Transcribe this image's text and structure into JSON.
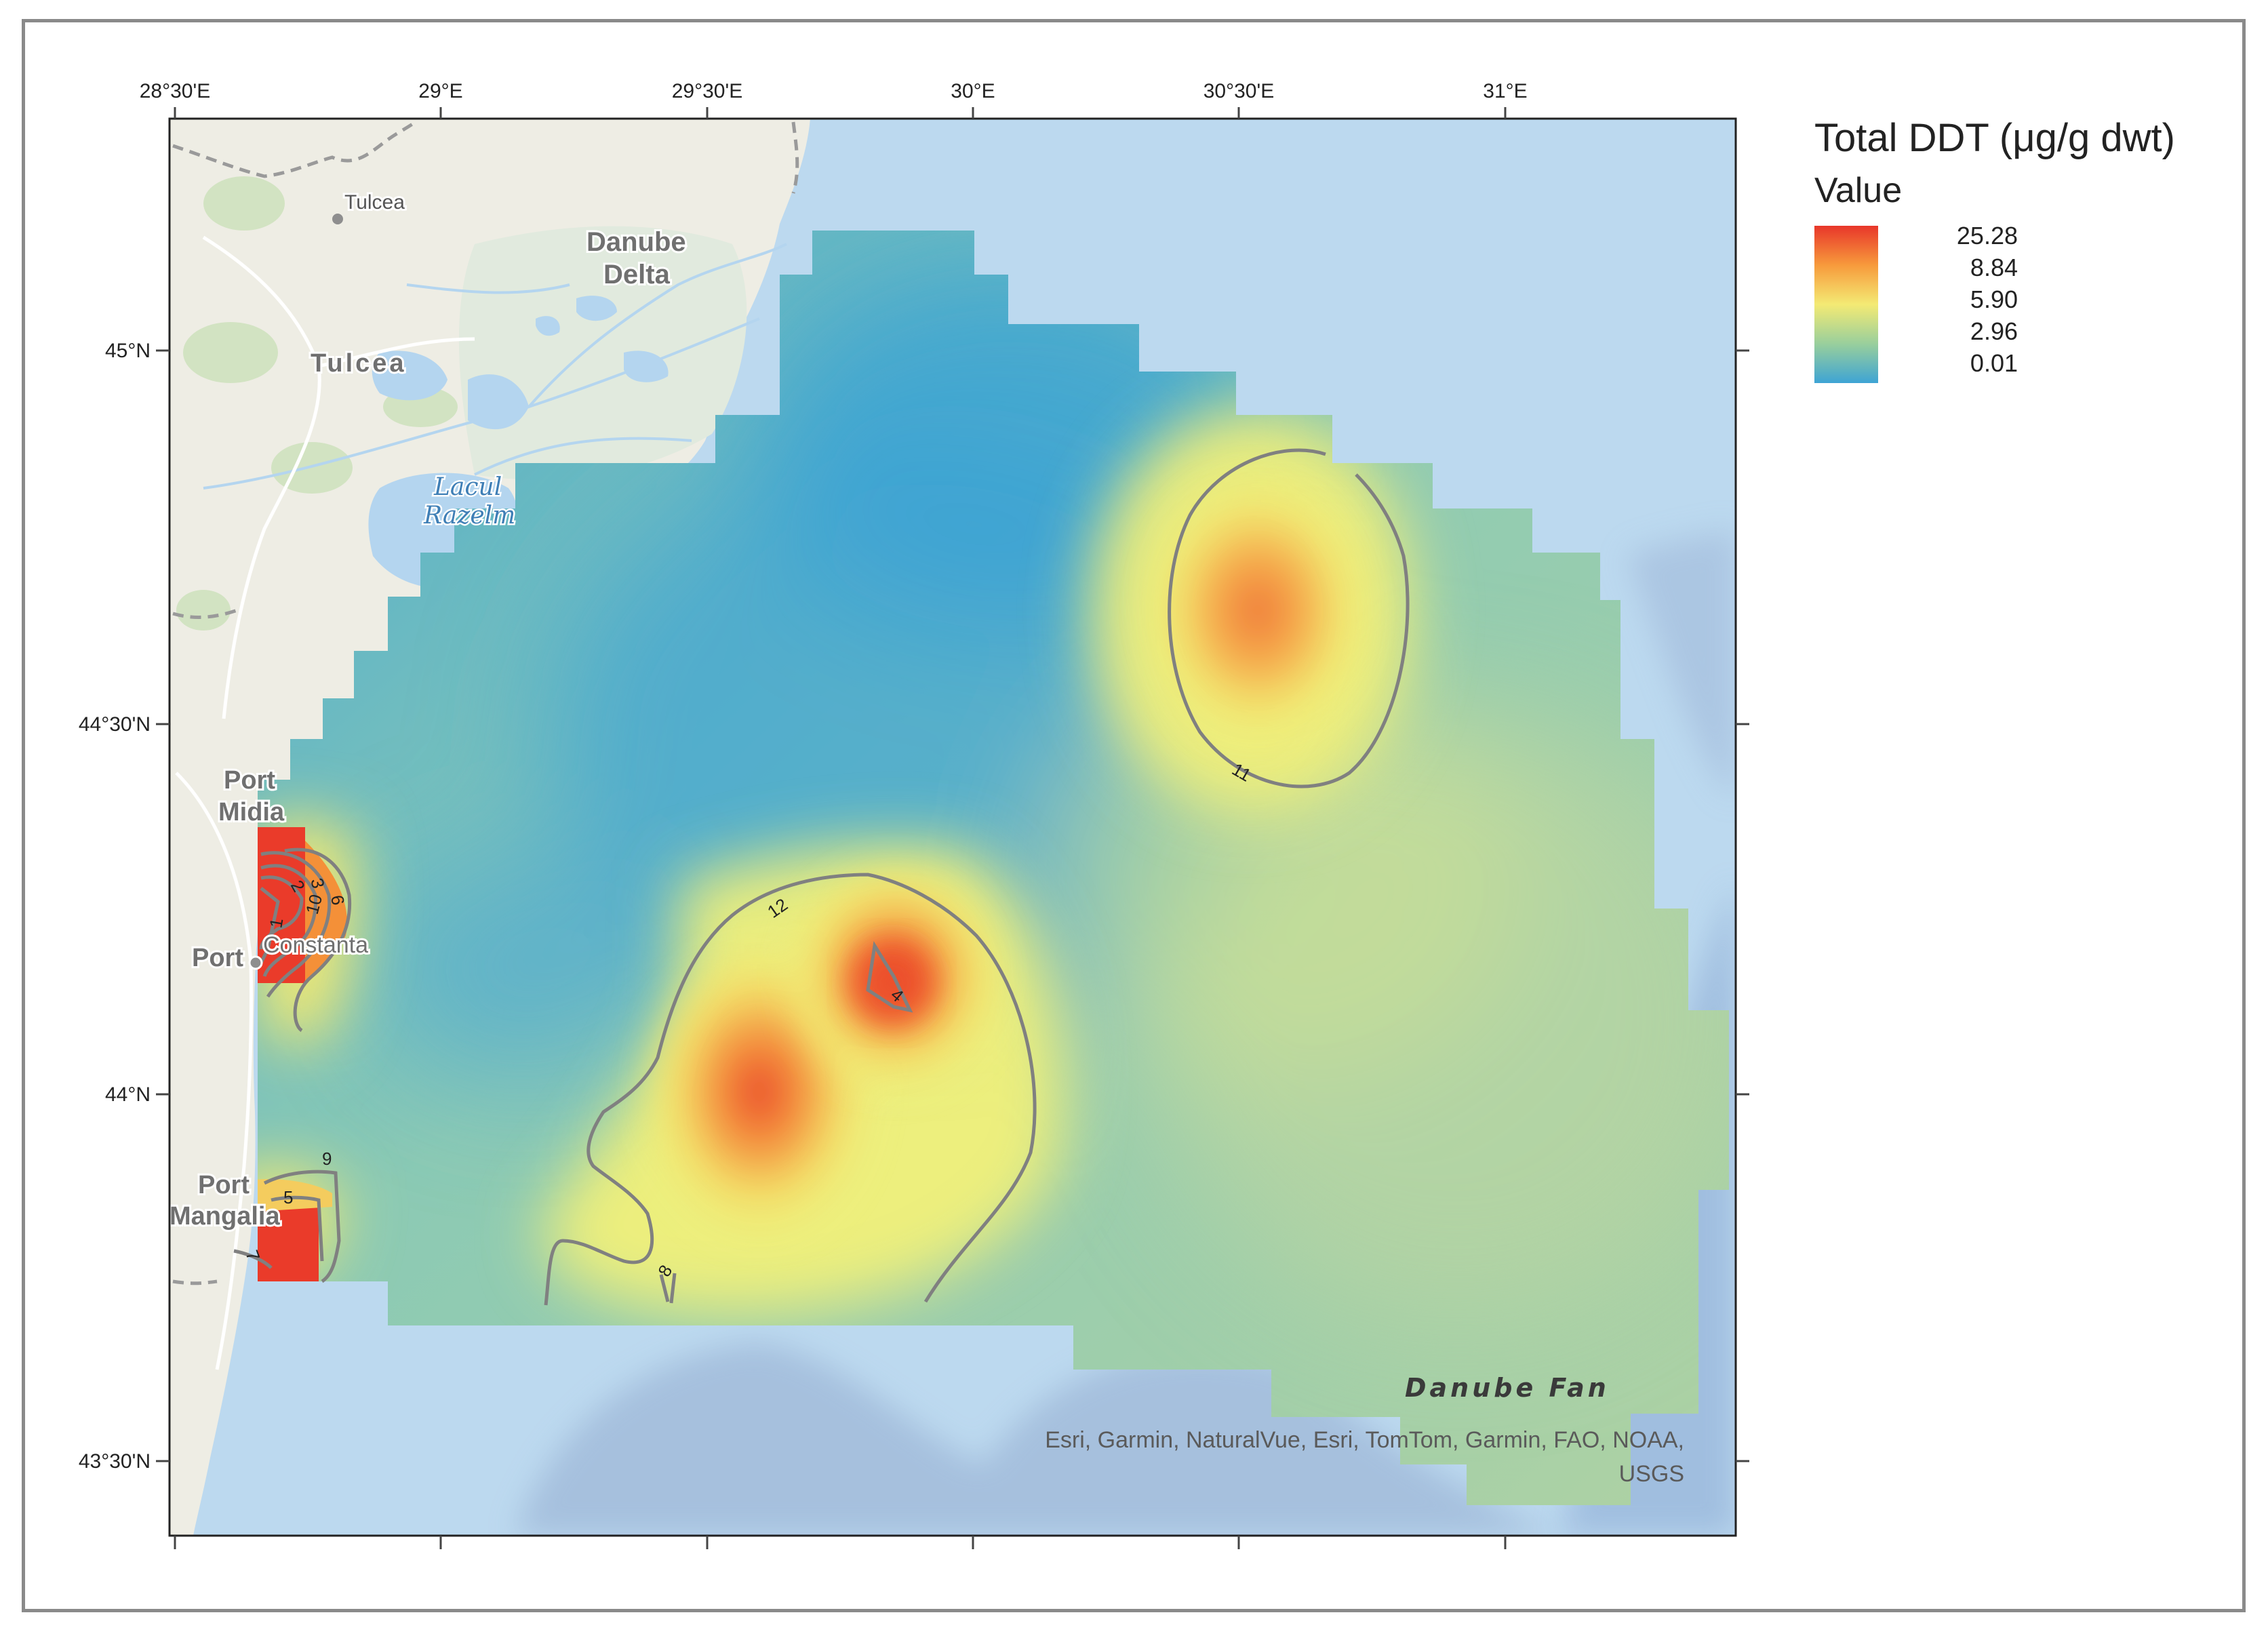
{
  "legend": {
    "title": "Total DDT (μg/g dwt)",
    "subtitle": "Value",
    "values": [
      "25.28",
      "8.84",
      "5.90",
      "2.96",
      "0.01"
    ],
    "ramp_colors": [
      "#e8362a",
      "#f79a3c",
      "#f4ea74",
      "#99cf9c",
      "#3ea4d4"
    ]
  },
  "axes": {
    "longitude_labels": [
      "28°30'E",
      "29°E",
      "29°30'E",
      "30°E",
      "30°30'E",
      "31°E"
    ],
    "latitude_labels": [
      "45°N",
      "44°30'N",
      "44°N",
      "43°30'N"
    ]
  },
  "places": {
    "tulcea_small": "Tulcea",
    "tulcea": "Tulcea",
    "danube_delta_1": "Danube",
    "danube_delta_2": "Delta",
    "lacul_1": "Lacul",
    "lacul_2": "Razelm",
    "port_midia_1": "Port",
    "port_midia_2": "Midia",
    "port_constanta_1": "Port",
    "port_constanta_2": "Constanta",
    "port_mangalia_1": "Port",
    "port_mangalia_2": "Mangalia",
    "danube_fan": "Danube Fan"
  },
  "contour_labels": [
    "11",
    "12",
    "4",
    "8",
    "9",
    "5",
    "7",
    "2",
    "3",
    "6",
    "10",
    "1"
  ],
  "attribution": {
    "line1": "Esri, Garmin, NaturalVue, Esri, TomTom, Garmin, FAO, NOAA,",
    "line2": "USGS"
  }
}
